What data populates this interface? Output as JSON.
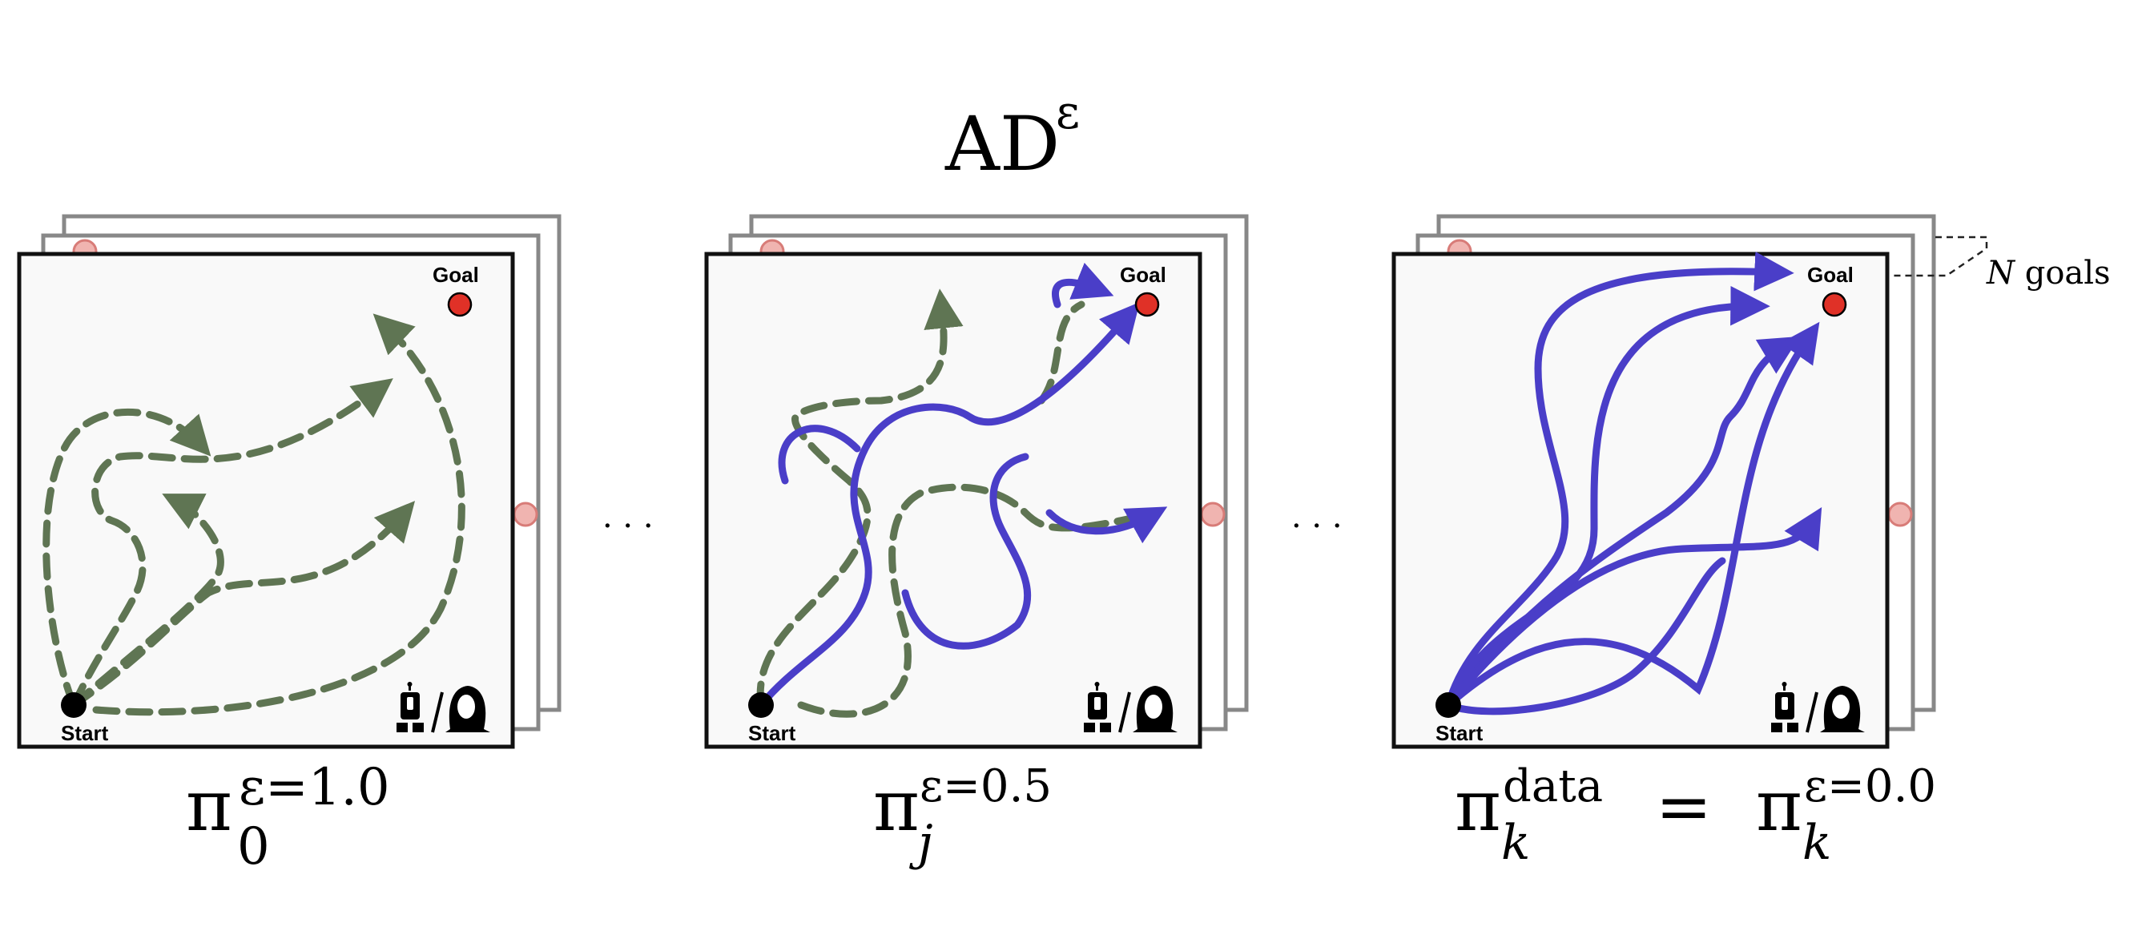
{
  "title": {
    "base": "AD",
    "sup": "ε"
  },
  "ellipsis": "· · ·",
  "panel_labels": {
    "start": "Start",
    "goal": "Goal"
  },
  "n_goals": {
    "var": "N",
    "text": " goals"
  },
  "captions": [
    {
      "pi": "π",
      "sub": "0",
      "sup": "ε=1.0"
    },
    {
      "pi": "π",
      "sub": "j",
      "sup": "ε=0.5"
    },
    {
      "pi": "π",
      "sub": "k",
      "sup": "data",
      "eq": " = ",
      "pi2": "π",
      "sub2": "k",
      "sup2": "ε=0.0"
    }
  ],
  "colors": {
    "exploration": "#5f7553",
    "expert": "#4a3ec8",
    "goal": "#e03127",
    "ghost_goal": "#f0b4b0",
    "frame": "#111111",
    "stack_frame": "#888888",
    "panel_bg": "#f9f9f9"
  }
}
